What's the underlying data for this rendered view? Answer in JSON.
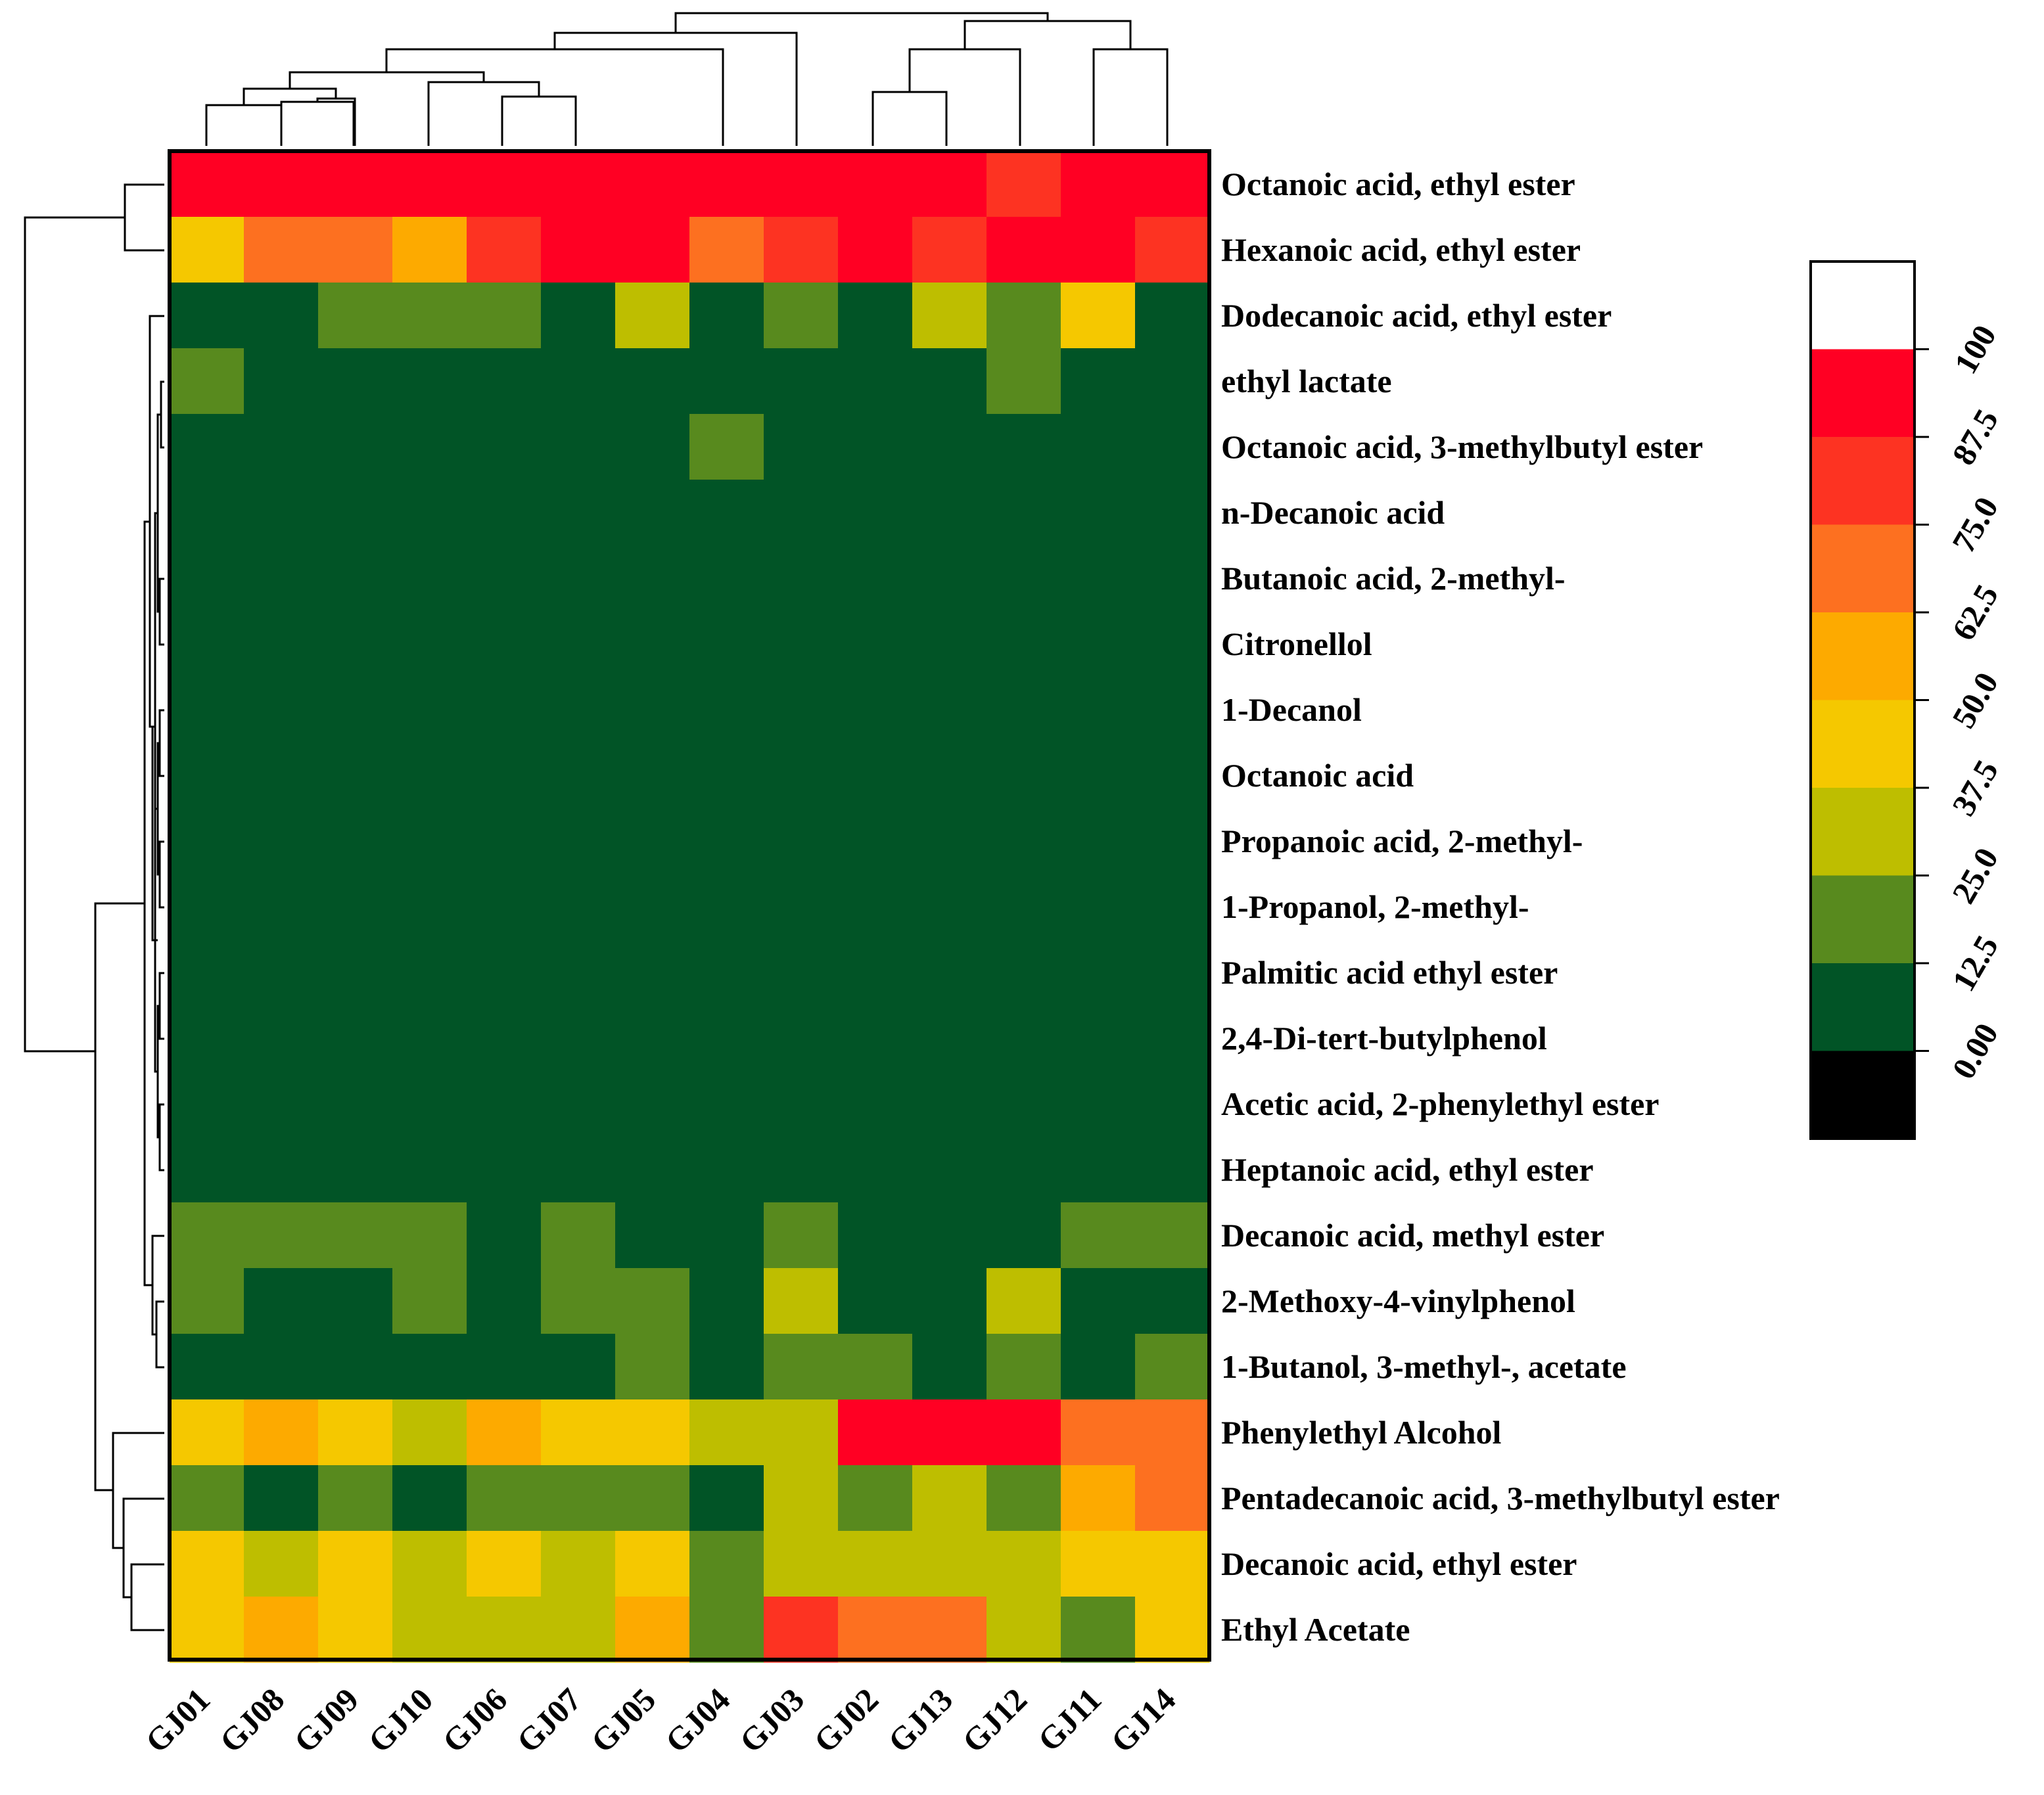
{
  "chart_data": {
    "type": "heatmap",
    "title": "",
    "xlabel": "",
    "ylabel": "",
    "columns": [
      "GJ01",
      "GJ08",
      "GJ09",
      "GJ10",
      "GJ06",
      "GJ07",
      "GJ05",
      "GJ04",
      "GJ03",
      "GJ02",
      "GJ13",
      "GJ12",
      "GJ11",
      "GJ14"
    ],
    "rows": [
      "Octanoic acid, ethyl ester",
      "Hexanoic acid, ethyl ester",
      "Dodecanoic acid, ethyl ester",
      "ethyl lactate",
      "Octanoic acid, 3-methylbutyl ester",
      "n-Decanoic acid",
      "Butanoic acid, 2-methyl-",
      "Citronellol",
      "1-Decanol",
      "Octanoic acid",
      "Propanoic acid, 2-methyl-",
      "1-Propanol, 2-methyl-",
      "Palmitic acid ethyl ester",
      "2,4-Di-tert-butylphenol",
      "Acetic acid, 2-phenylethyl ester",
      "Heptanoic acid, ethyl ester",
      "Decanoic acid, methyl ester",
      "2-Methoxy-4-vinylphenol",
      "1-Butanol, 3-methyl-, acetate",
      "Phenylethyl Alcohol",
      "Pentadecanoic acid, 3-methylbutyl ester",
      "Decanoic acid, ethyl ester",
      "Ethyl Acetate"
    ],
    "values": [
      [
        95,
        95,
        95,
        95,
        95,
        95,
        95,
        95,
        95,
        95,
        95,
        82,
        95,
        95
      ],
      [
        45,
        70,
        70,
        55,
        82,
        95,
        95,
        70,
        82,
        95,
        82,
        95,
        95,
        82
      ],
      [
        5,
        5,
        20,
        20,
        20,
        5,
        32,
        5,
        20,
        5,
        32,
        20,
        45,
        5
      ],
      [
        20,
        5,
        5,
        5,
        5,
        5,
        5,
        5,
        5,
        5,
        5,
        20,
        5,
        5
      ],
      [
        5,
        5,
        5,
        5,
        5,
        5,
        5,
        20,
        5,
        5,
        5,
        5,
        5,
        5
      ],
      [
        5,
        5,
        5,
        5,
        5,
        5,
        5,
        5,
        5,
        5,
        5,
        5,
        5,
        5
      ],
      [
        5,
        5,
        5,
        5,
        5,
        5,
        5,
        5,
        5,
        5,
        5,
        5,
        5,
        5
      ],
      [
        5,
        5,
        5,
        5,
        5,
        5,
        5,
        5,
        5,
        5,
        5,
        5,
        5,
        5
      ],
      [
        5,
        5,
        5,
        5,
        5,
        5,
        5,
        5,
        5,
        5,
        5,
        5,
        5,
        5
      ],
      [
        5,
        5,
        5,
        5,
        5,
        5,
        5,
        5,
        5,
        5,
        5,
        5,
        5,
        5
      ],
      [
        5,
        5,
        5,
        5,
        5,
        5,
        5,
        5,
        5,
        5,
        5,
        5,
        5,
        5
      ],
      [
        5,
        5,
        5,
        5,
        5,
        5,
        5,
        5,
        5,
        5,
        5,
        5,
        5,
        5
      ],
      [
        5,
        5,
        5,
        5,
        5,
        5,
        5,
        5,
        5,
        5,
        5,
        5,
        5,
        5
      ],
      [
        5,
        5,
        5,
        5,
        5,
        5,
        5,
        5,
        5,
        5,
        5,
        5,
        5,
        5
      ],
      [
        5,
        5,
        5,
        5,
        5,
        5,
        5,
        5,
        5,
        5,
        5,
        5,
        5,
        5
      ],
      [
        5,
        5,
        5,
        5,
        5,
        5,
        5,
        5,
        5,
        5,
        5,
        5,
        5,
        5
      ],
      [
        20,
        20,
        20,
        20,
        5,
        20,
        5,
        5,
        20,
        5,
        5,
        5,
        20,
        20
      ],
      [
        20,
        5,
        5,
        20,
        5,
        20,
        20,
        5,
        32,
        5,
        5,
        32,
        5,
        5
      ],
      [
        5,
        5,
        5,
        5,
        5,
        5,
        20,
        5,
        20,
        20,
        5,
        20,
        5,
        20
      ],
      [
        45,
        55,
        45,
        32,
        55,
        45,
        45,
        32,
        32,
        95,
        95,
        95,
        70,
        70
      ],
      [
        20,
        5,
        20,
        5,
        20,
        20,
        20,
        5,
        32,
        20,
        32,
        20,
        55,
        70
      ],
      [
        45,
        32,
        45,
        32,
        45,
        32,
        45,
        20,
        32,
        32,
        32,
        32,
        45,
        45
      ],
      [
        45,
        55,
        45,
        32,
        32,
        32,
        55,
        20,
        82,
        70,
        70,
        32,
        20,
        45
      ]
    ],
    "color_scale": {
      "breaks": [
        0,
        12.5,
        25,
        37.5,
        50,
        62.5,
        75,
        87.5,
        100
      ],
      "tick_labels": [
        "0.00",
        "12.5",
        "25.0",
        "37.5",
        "50.0",
        "62.5",
        "75.0",
        "87.5",
        "100"
      ],
      "colors": [
        "#015426",
        "#588a1e",
        "#bebe00",
        "#f5c800",
        "#fdaa00",
        "#fd7020",
        "#fd3322",
        "#ff0023"
      ],
      "na_color": "#000000",
      "over_color": "#ffffff"
    },
    "row_dendrogram": true,
    "column_dendrogram": true
  }
}
